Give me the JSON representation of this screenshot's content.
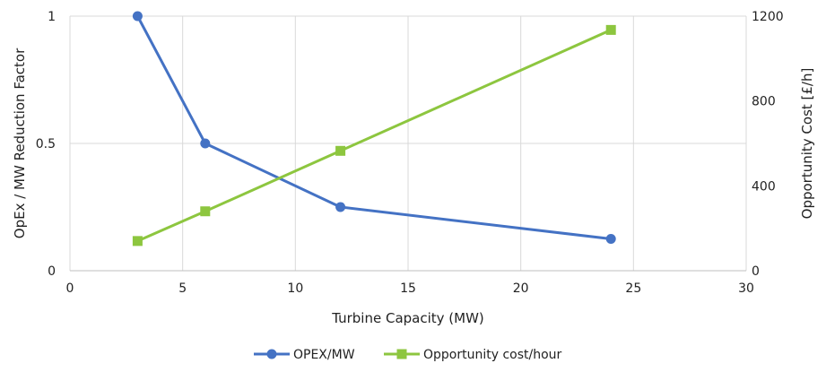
{
  "chart_data": {
    "type": "line",
    "title": "",
    "xlabel": "Turbine Capacity (MW)",
    "ylabel": "OpEx / MW Reduction Factor",
    "y2label": "Opportunity Cost  [£/h]",
    "xlim": [
      0,
      30
    ],
    "ylim": [
      0,
      1
    ],
    "y2lim": [
      0,
      1200
    ],
    "x_ticks": [
      "0",
      "5",
      "10",
      "15",
      "20",
      "25",
      "30"
    ],
    "y_ticks": [
      "0",
      "0.5",
      "1"
    ],
    "y2_ticks": [
      "0",
      "400",
      "800",
      "1200"
    ],
    "grid": "vertical",
    "legend_position": "bottom",
    "x": [
      3,
      6,
      12,
      24
    ],
    "series": [
      {
        "name": "OPEX/MW",
        "axis": "left",
        "color": "#4472C4",
        "marker": "circle",
        "values": [
          1.0,
          0.5,
          0.25,
          0.125
        ]
      },
      {
        "name": "Opportunity cost/hour",
        "axis": "right",
        "color": "#8DC63F",
        "marker": "square",
        "values": [
          140,
          280,
          565,
          1135
        ]
      }
    ]
  }
}
